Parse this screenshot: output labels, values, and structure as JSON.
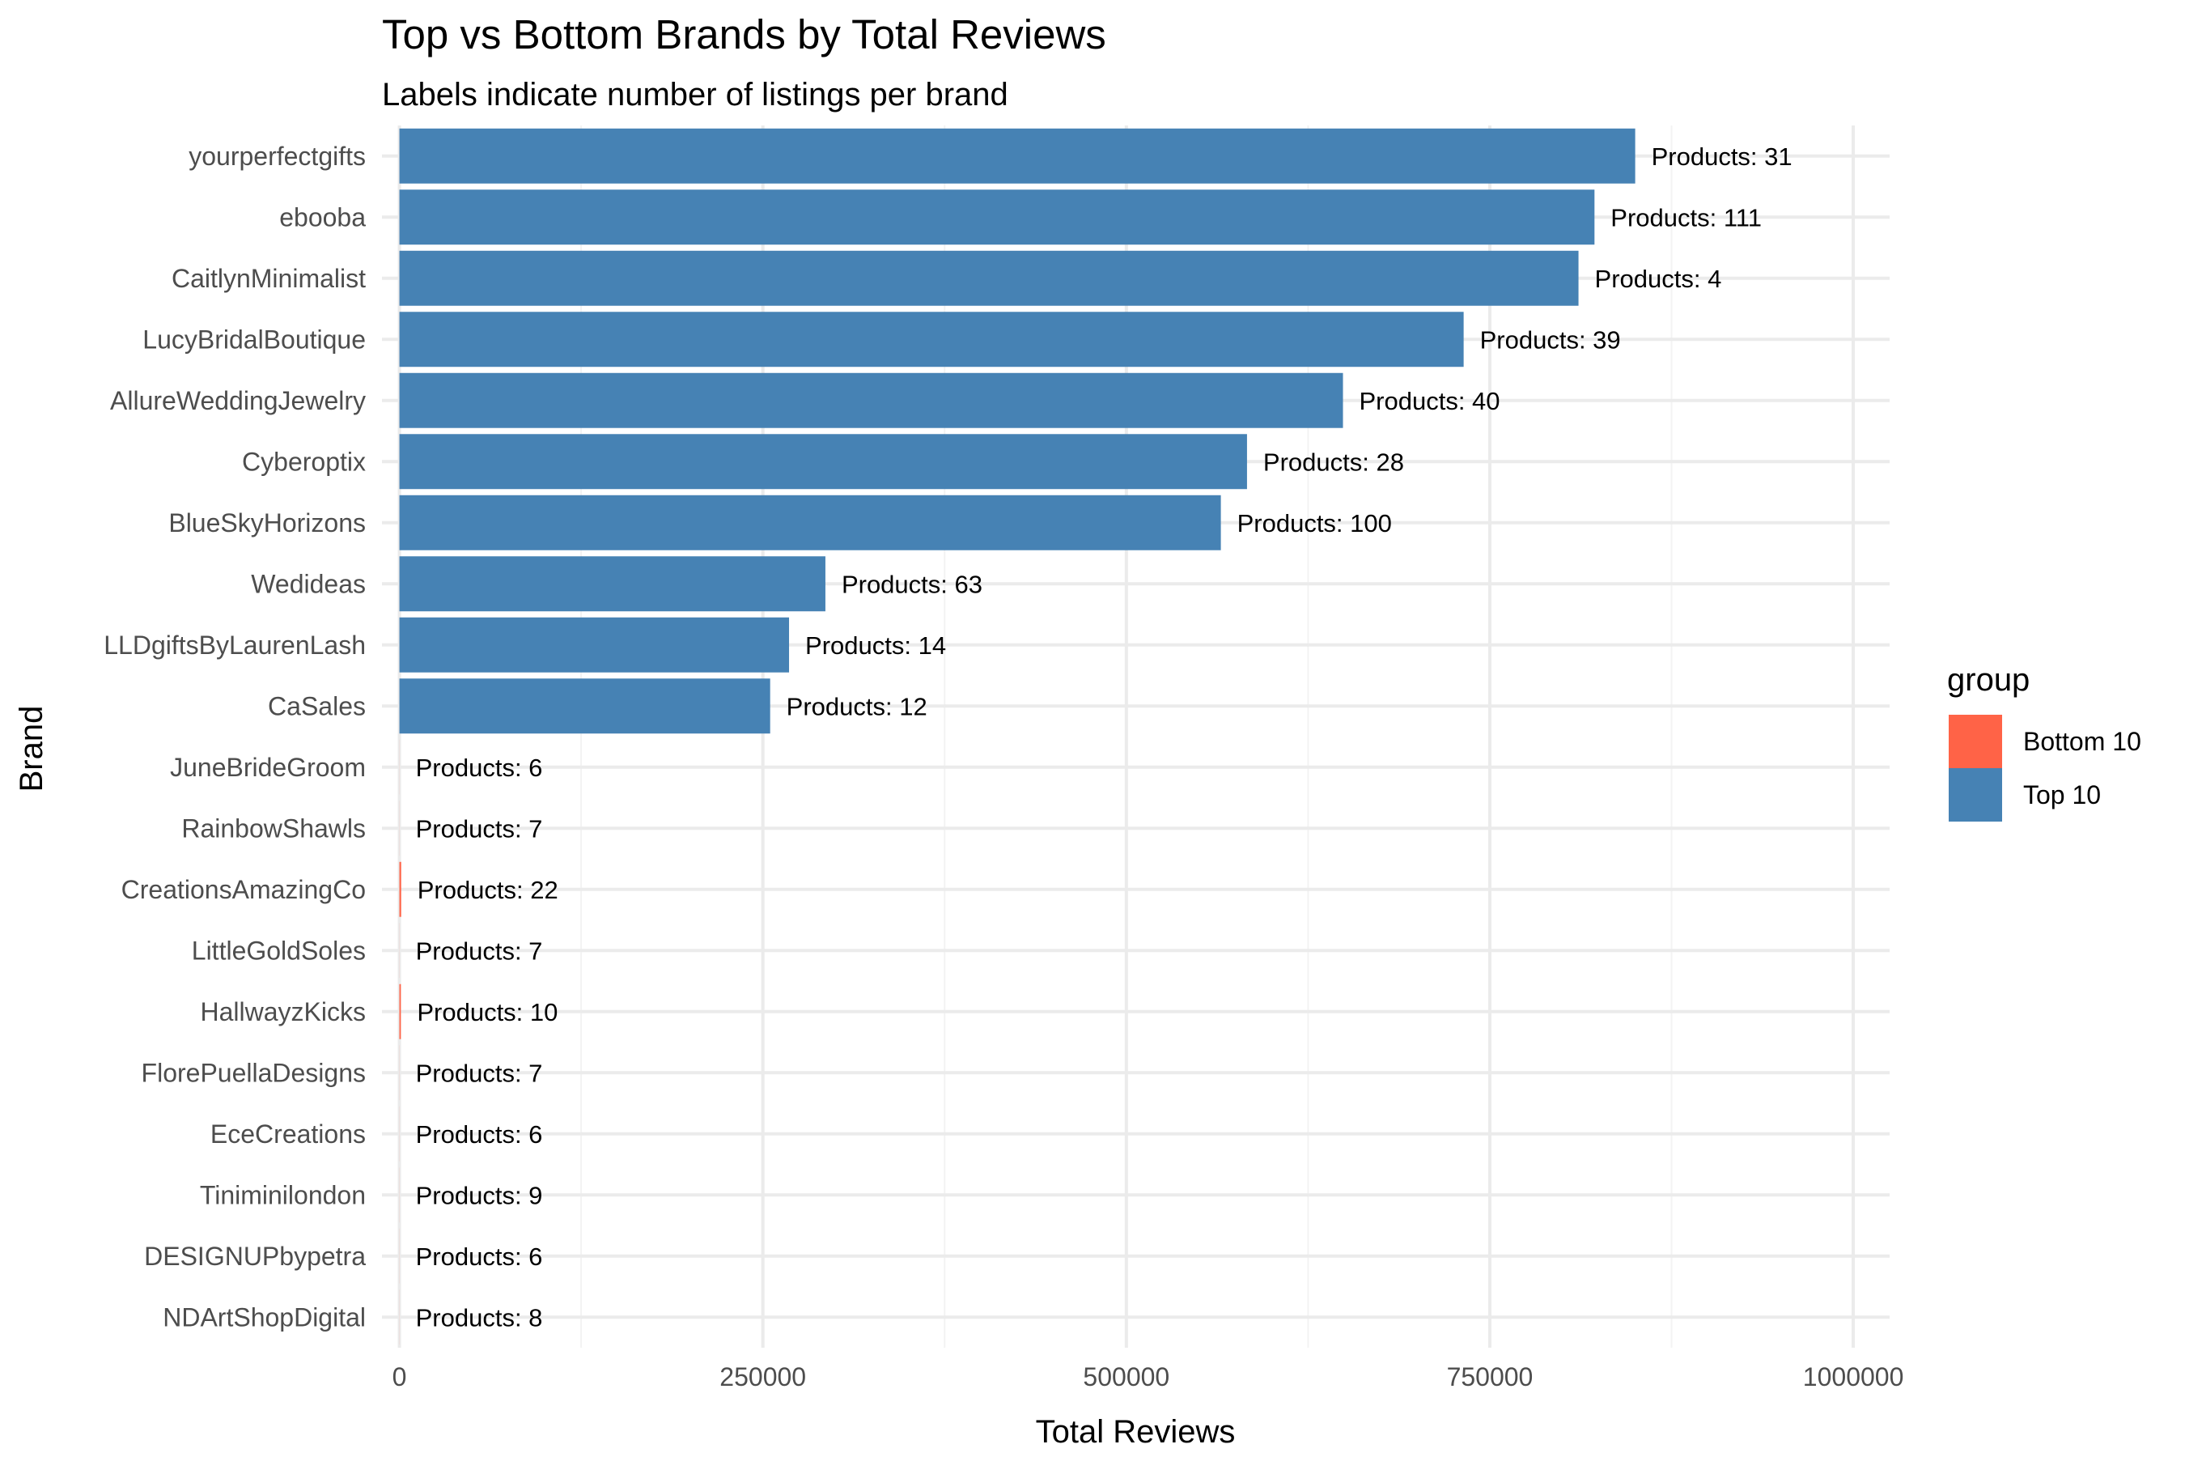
{
  "chart_data": {
    "type": "bar",
    "orientation": "horizontal",
    "title": "Top vs Bottom Brands by Total Reviews",
    "subtitle": "Labels indicate number of listings per brand",
    "xlabel": "Total Reviews",
    "ylabel": "Brand",
    "xlim": [
      -12000,
      1025000
    ],
    "x_ticks": [
      0,
      250000,
      500000,
      750000,
      1000000
    ],
    "x_tick_labels": [
      "0",
      "250000",
      "500000",
      "750000",
      "1000000"
    ],
    "grid": true,
    "legend": {
      "title": "group",
      "placement": "right",
      "entries": [
        {
          "label": "Bottom 10",
          "color": "#FF6347"
        },
        {
          "label": "Top 10",
          "color": "#4682B4"
        }
      ]
    },
    "bars": [
      {
        "brand": "yourperfectgifts",
        "value": 850000,
        "group": "Top 10",
        "label": "Products: 31"
      },
      {
        "brand": "ebooba",
        "value": 822000,
        "group": "Top 10",
        "label": "Products: 111"
      },
      {
        "brand": "CaitlynMinimalist",
        "value": 811000,
        "group": "Top 10",
        "label": "Products: 4"
      },
      {
        "brand": "LucyBridalBoutique",
        "value": 732000,
        "group": "Top 10",
        "label": "Products: 39"
      },
      {
        "brand": "AllureWeddingJewelry",
        "value": 649000,
        "group": "Top 10",
        "label": "Products: 40"
      },
      {
        "brand": "Cyberoptix",
        "value": 583000,
        "group": "Top 10",
        "label": "Products: 28"
      },
      {
        "brand": "BlueSkyHorizons",
        "value": 565000,
        "group": "Top 10",
        "label": "Products: 100"
      },
      {
        "brand": "Wedideas",
        "value": 293000,
        "group": "Top 10",
        "label": "Products: 63"
      },
      {
        "brand": "LLDgiftsByLaurenLash",
        "value": 268000,
        "group": "Top 10",
        "label": "Products: 14"
      },
      {
        "brand": "CaSales",
        "value": 255000,
        "group": "Top 10",
        "label": "Products: 12"
      },
      {
        "brand": "JuneBrideGroom",
        "value": 35,
        "group": "Bottom 10",
        "label": "Products: 6"
      },
      {
        "brand": "RainbowShawls",
        "value": 39,
        "group": "Bottom 10",
        "label": "Products: 7"
      },
      {
        "brand": "CreationsAmazingCo",
        "value": 1200,
        "group": "Bottom 10",
        "label": "Products: 22"
      },
      {
        "brand": "LittleGoldSoles",
        "value": 40,
        "group": "Bottom 10",
        "label": "Products: 7"
      },
      {
        "brand": "HallwayzKicks",
        "value": 1000,
        "group": "Bottom 10",
        "label": "Products: 10"
      },
      {
        "brand": "FlorePuellaDesigns",
        "value": 45,
        "group": "Bottom 10",
        "label": "Products: 7"
      },
      {
        "brand": "EceCreations",
        "value": 40,
        "group": "Bottom 10",
        "label": "Products: 6"
      },
      {
        "brand": "Tiniminilondon",
        "value": 43,
        "group": "Bottom 10",
        "label": "Products: 9"
      },
      {
        "brand": "DESIGNUPbypetra",
        "value": 43,
        "group": "Bottom 10",
        "label": "Products: 6"
      },
      {
        "brand": "NDArtShopDigital",
        "value": 41,
        "group": "Bottom 10",
        "label": "Products: 8"
      }
    ]
  }
}
